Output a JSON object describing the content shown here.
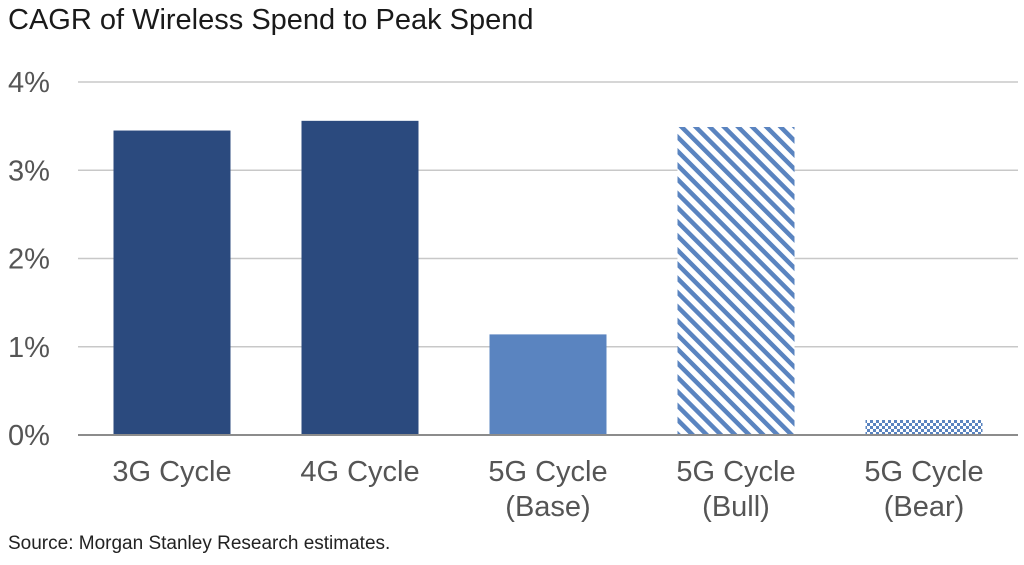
{
  "title": "CAGR of Wireless Spend to Peak Spend",
  "source": "Source: Morgan Stanley Research estimates.",
  "colors": {
    "dark_blue": "#2b4a7e",
    "light_blue": "#5a84c0",
    "grid": "#c8c8c8",
    "axis": "#8c8c8c",
    "label": "#555555"
  },
  "chart_data": {
    "type": "bar",
    "title": "CAGR of Wireless Spend to Peak Spend",
    "xlabel": "",
    "ylabel": "",
    "ylim": [
      0,
      4
    ],
    "yticks": [
      0,
      1,
      2,
      3,
      4
    ],
    "ytick_labels": [
      "0%",
      "1%",
      "2%",
      "3%",
      "4%"
    ],
    "grid": true,
    "legend": "none",
    "categories": [
      [
        "3G Cycle"
      ],
      [
        "4G Cycle"
      ],
      [
        "5G Cycle",
        "(Base)"
      ],
      [
        "5G Cycle",
        "(Bull)"
      ],
      [
        "5G Cycle",
        "(Bear)"
      ]
    ],
    "values": [
      3.45,
      3.56,
      1.14,
      3.49,
      0.17
    ],
    "fills": [
      "solid-dark",
      "solid-dark",
      "solid-light",
      "diagonal-stripes",
      "checkered"
    ]
  }
}
